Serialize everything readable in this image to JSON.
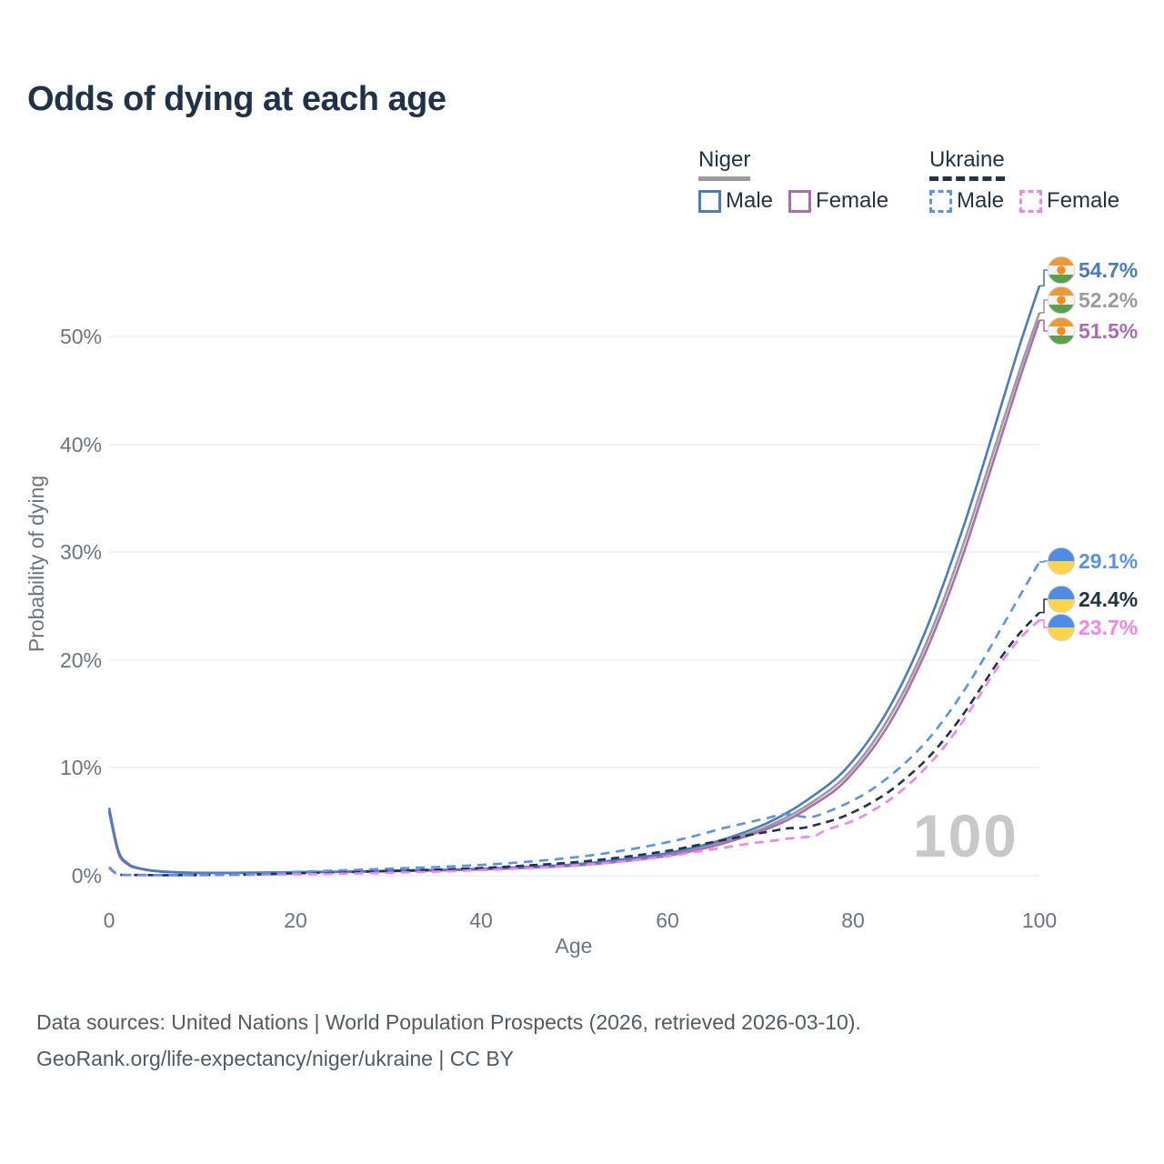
{
  "title": "Odds of dying at each age",
  "legend": {
    "groups": [
      {
        "name": "Niger",
        "line_style": "solid",
        "items": [
          {
            "label": "Male",
            "color": "#4a7bbd"
          },
          {
            "label": "Female",
            "color": "#a96cb5"
          }
        ]
      },
      {
        "name": "Ukraine",
        "line_style": "dashed",
        "items": [
          {
            "label": "Male",
            "color": "#5b92e5"
          },
          {
            "label": "Female",
            "color": "#f583ec"
          }
        ]
      }
    ]
  },
  "chart_data": {
    "type": "line",
    "title": "Odds of dying at each age",
    "xlabel": "Age",
    "ylabel": "Probability of dying",
    "xlim": [
      0,
      100
    ],
    "ylim_percent": [
      0,
      57
    ],
    "x_ticks": [
      "0",
      "20",
      "40",
      "60",
      "80",
      "100"
    ],
    "y_ticks": [
      "0%",
      "10%",
      "20%",
      "30%",
      "40%",
      "50%"
    ],
    "grid": "horizontal",
    "legend_position": "top-right",
    "watermark": "100",
    "series": [
      {
        "id": "niger-male",
        "name": "Niger Male",
        "color": "#4a7bbd",
        "dash": "solid",
        "end_value": 54.7,
        "end_label": "54.7%",
        "flag": "niger",
        "points": [
          [
            0,
            6.3
          ],
          [
            1,
            2.3
          ],
          [
            2,
            1.15
          ],
          [
            3,
            0.75
          ],
          [
            5,
            0.45
          ],
          [
            8,
            0.3
          ],
          [
            12,
            0.27
          ],
          [
            16,
            0.29
          ],
          [
            20,
            0.33
          ],
          [
            25,
            0.38
          ],
          [
            30,
            0.45
          ],
          [
            35,
            0.53
          ],
          [
            40,
            0.65
          ],
          [
            45,
            0.82
          ],
          [
            50,
            1.05
          ],
          [
            55,
            1.5
          ],
          [
            60,
            2.1
          ],
          [
            65,
            3.1
          ],
          [
            70,
            4.6
          ],
          [
            73,
            5.9
          ],
          [
            75,
            7.0
          ],
          [
            78,
            8.9
          ],
          [
            80,
            10.7
          ],
          [
            82,
            13.0
          ],
          [
            84,
            15.8
          ],
          [
            86,
            19.2
          ],
          [
            88,
            23.2
          ],
          [
            90,
            27.8
          ],
          [
            92,
            32.8
          ],
          [
            94,
            38.2
          ],
          [
            96,
            43.9
          ],
          [
            98,
            49.5
          ],
          [
            100,
            54.7
          ]
        ]
      },
      {
        "id": "niger-both",
        "name": "Niger (both sexes)",
        "color": "#9b9b9b",
        "dash": "solid",
        "end_value": 52.2,
        "end_label": "52.2%",
        "flag": "niger",
        "points": [
          [
            0,
            6.1
          ],
          [
            1,
            2.2
          ],
          [
            2,
            1.1
          ],
          [
            3,
            0.72
          ],
          [
            5,
            0.43
          ],
          [
            8,
            0.29
          ],
          [
            12,
            0.26
          ],
          [
            16,
            0.28
          ],
          [
            20,
            0.31
          ],
          [
            25,
            0.36
          ],
          [
            30,
            0.43
          ],
          [
            35,
            0.5
          ],
          [
            40,
            0.61
          ],
          [
            45,
            0.77
          ],
          [
            50,
            0.98
          ],
          [
            55,
            1.4
          ],
          [
            60,
            1.95
          ],
          [
            65,
            2.9
          ],
          [
            70,
            4.3
          ],
          [
            73,
            5.5
          ],
          [
            75,
            6.5
          ],
          [
            78,
            8.3
          ],
          [
            80,
            10.0
          ],
          [
            82,
            12.2
          ],
          [
            84,
            14.9
          ],
          [
            86,
            18.1
          ],
          [
            88,
            21.9
          ],
          [
            90,
            26.3
          ],
          [
            92,
            31.2
          ],
          [
            94,
            36.5
          ],
          [
            96,
            41.9
          ],
          [
            98,
            47.2
          ],
          [
            100,
            52.2
          ]
        ]
      },
      {
        "id": "niger-female",
        "name": "Niger Female",
        "color": "#a96cb5",
        "dash": "solid",
        "end_value": 51.5,
        "end_label": "51.5%",
        "flag": "niger",
        "points": [
          [
            0,
            5.9
          ],
          [
            1,
            2.1
          ],
          [
            2,
            1.05
          ],
          [
            3,
            0.7
          ],
          [
            5,
            0.42
          ],
          [
            8,
            0.28
          ],
          [
            12,
            0.25
          ],
          [
            16,
            0.27
          ],
          [
            20,
            0.3
          ],
          [
            25,
            0.34
          ],
          [
            30,
            0.41
          ],
          [
            35,
            0.48
          ],
          [
            40,
            0.58
          ],
          [
            45,
            0.73
          ],
          [
            50,
            0.93
          ],
          [
            55,
            1.32
          ],
          [
            60,
            1.85
          ],
          [
            65,
            2.75
          ],
          [
            70,
            4.1
          ],
          [
            73,
            5.2
          ],
          [
            75,
            6.2
          ],
          [
            78,
            7.9
          ],
          [
            80,
            9.6
          ],
          [
            82,
            11.7
          ],
          [
            84,
            14.3
          ],
          [
            86,
            17.5
          ],
          [
            88,
            21.2
          ],
          [
            90,
            25.5
          ],
          [
            92,
            30.3
          ],
          [
            94,
            35.6
          ],
          [
            96,
            41.0
          ],
          [
            98,
            46.4
          ],
          [
            100,
            51.5
          ]
        ]
      },
      {
        "id": "ukraine-male",
        "name": "Ukraine Male",
        "color": "#5b92e5",
        "dash": "10 7",
        "end_value": 29.1,
        "end_label": "29.1%",
        "flag": "ukraine",
        "points": [
          [
            0,
            0.8
          ],
          [
            1,
            0.15
          ],
          [
            3,
            0.08
          ],
          [
            6,
            0.06
          ],
          [
            10,
            0.08
          ],
          [
            14,
            0.12
          ],
          [
            17,
            0.2
          ],
          [
            20,
            0.35
          ],
          [
            25,
            0.5
          ],
          [
            30,
            0.65
          ],
          [
            35,
            0.8
          ],
          [
            40,
            1.0
          ],
          [
            45,
            1.3
          ],
          [
            50,
            1.7
          ],
          [
            55,
            2.3
          ],
          [
            60,
            3.1
          ],
          [
            63,
            3.7
          ],
          [
            66,
            4.4
          ],
          [
            69,
            5.0
          ],
          [
            71,
            5.4
          ],
          [
            72,
            5.65
          ],
          [
            73,
            5.7
          ],
          [
            74,
            5.55
          ],
          [
            75,
            5.45
          ],
          [
            76,
            5.55
          ],
          [
            78,
            6.2
          ],
          [
            80,
            7.0
          ],
          [
            82,
            8.0
          ],
          [
            84,
            9.3
          ],
          [
            86,
            10.8
          ],
          [
            88,
            12.6
          ],
          [
            90,
            14.8
          ],
          [
            92,
            17.3
          ],
          [
            94,
            20.1
          ],
          [
            96,
            23.1
          ],
          [
            98,
            26.1
          ],
          [
            100,
            29.1
          ]
        ]
      },
      {
        "id": "ukraine-both",
        "name": "Ukraine (both sexes)",
        "color": "#223248",
        "dash": "9 6",
        "end_value": 24.4,
        "end_label": "24.4%",
        "flag": "ukraine",
        "points": [
          [
            0,
            0.75
          ],
          [
            1,
            0.13
          ],
          [
            3,
            0.07
          ],
          [
            6,
            0.05
          ],
          [
            10,
            0.06
          ],
          [
            14,
            0.09
          ],
          [
            17,
            0.14
          ],
          [
            20,
            0.22
          ],
          [
            25,
            0.32
          ],
          [
            30,
            0.44
          ],
          [
            35,
            0.56
          ],
          [
            40,
            0.72
          ],
          [
            45,
            0.95
          ],
          [
            50,
            1.25
          ],
          [
            55,
            1.7
          ],
          [
            60,
            2.3
          ],
          [
            63,
            2.8
          ],
          [
            66,
            3.3
          ],
          [
            69,
            3.8
          ],
          [
            71,
            4.1
          ],
          [
            73,
            4.4
          ],
          [
            74,
            4.4
          ],
          [
            75,
            4.5
          ],
          [
            78,
            5.2
          ],
          [
            80,
            5.9
          ],
          [
            82,
            6.8
          ],
          [
            84,
            7.9
          ],
          [
            86,
            9.3
          ],
          [
            88,
            10.9
          ],
          [
            90,
            12.9
          ],
          [
            92,
            15.2
          ],
          [
            94,
            17.8
          ],
          [
            96,
            20.4
          ],
          [
            98,
            22.6
          ],
          [
            100,
            24.4
          ]
        ]
      },
      {
        "id": "ukraine-female",
        "name": "Ukraine Female",
        "color": "#f583ec",
        "dash": "10 7",
        "end_value": 23.7,
        "end_label": "23.7%",
        "flag": "ukraine",
        "points": [
          [
            0,
            0.7
          ],
          [
            1,
            0.11
          ],
          [
            3,
            0.06
          ],
          [
            6,
            0.04
          ],
          [
            10,
            0.05
          ],
          [
            14,
            0.07
          ],
          [
            17,
            0.1
          ],
          [
            20,
            0.13
          ],
          [
            25,
            0.19
          ],
          [
            30,
            0.27
          ],
          [
            35,
            0.37
          ],
          [
            40,
            0.52
          ],
          [
            45,
            0.7
          ],
          [
            50,
            0.95
          ],
          [
            55,
            1.3
          ],
          [
            60,
            1.8
          ],
          [
            63,
            2.2
          ],
          [
            66,
            2.6
          ],
          [
            69,
            3.0
          ],
          [
            71,
            3.2
          ],
          [
            73,
            3.45
          ],
          [
            75,
            3.6
          ],
          [
            76,
            3.75
          ],
          [
            77,
            4.2
          ],
          [
            80,
            5.1
          ],
          [
            82,
            6.0
          ],
          [
            84,
            7.1
          ],
          [
            86,
            8.5
          ],
          [
            88,
            10.2
          ],
          [
            90,
            12.2
          ],
          [
            92,
            14.6
          ],
          [
            94,
            17.3
          ],
          [
            96,
            19.9
          ],
          [
            98,
            22.1
          ],
          [
            100,
            23.7
          ]
        ]
      }
    ]
  },
  "flag_colors": {
    "niger_orange": "#ec9a38",
    "niger_white": "#f5f3f0",
    "niger_green": "#5ba04e",
    "niger_dot": "#f08b2a",
    "ukraine_blue": "#4f8de5",
    "ukraine_yellow": "#fbd44e"
  },
  "footer": {
    "line1": "Data sources: United Nations | World Population Prospects (2026, retrieved 2026-03-10).",
    "line2": "GeoRank.org/life-expectancy/niger/ukraine | CC BY"
  }
}
